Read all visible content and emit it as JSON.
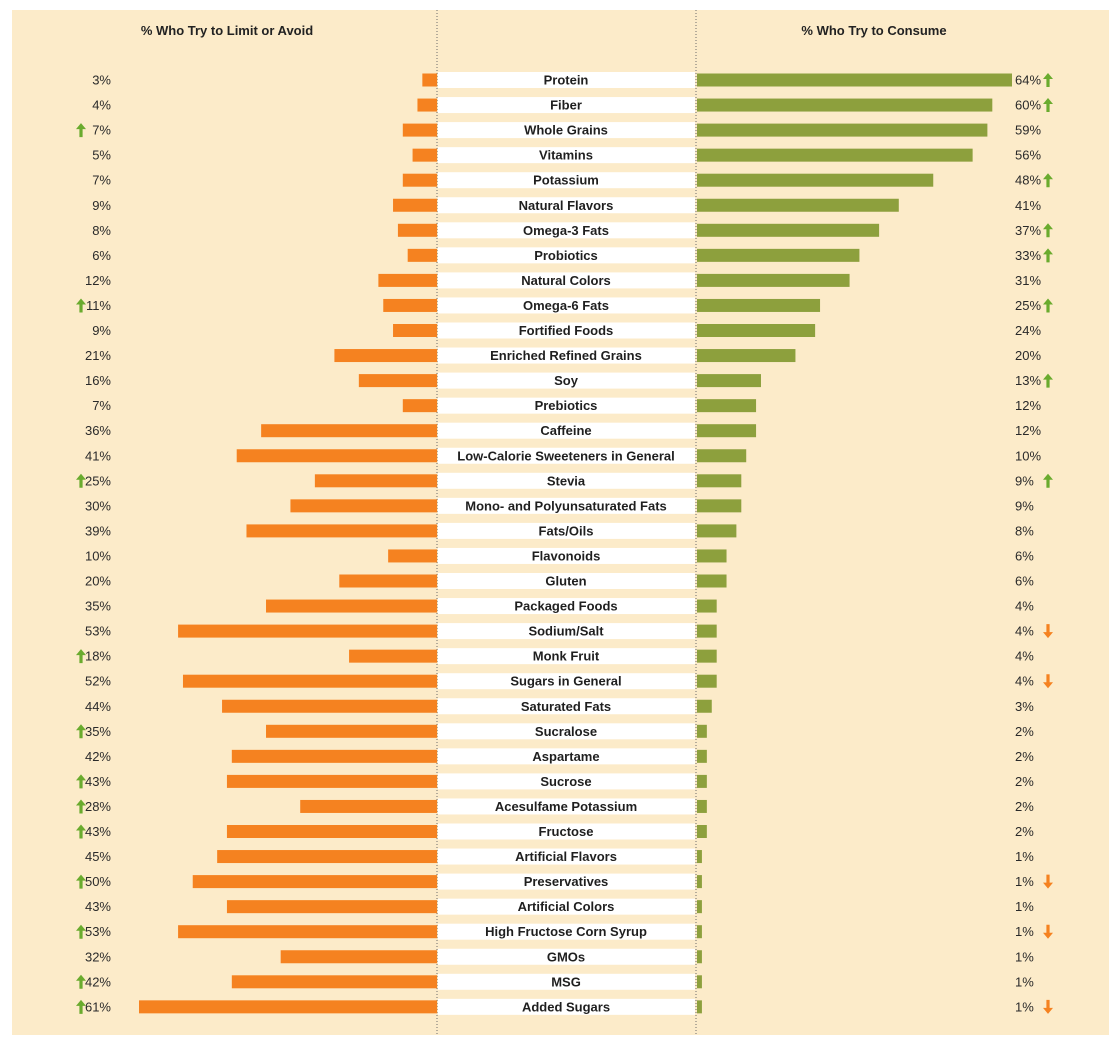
{
  "colors": {
    "background": "#fcebc9",
    "avoid_bar": "#f58220",
    "consume_bar": "#8da03d",
    "label_band": "#ffffff",
    "arrow_up": "#6aab2e",
    "arrow_down": "#f58220"
  },
  "headers": {
    "left": "% Who Try to Limit or Avoid",
    "right": "% Who Try to Consume"
  },
  "chart_data": {
    "type": "bar",
    "orientation": "horizontal-diverging",
    "categories": [
      "Protein",
      "Fiber",
      "Whole Grains",
      "Vitamins",
      "Potassium",
      "Natural Flavors",
      "Omega-3 Fats",
      "Probiotics",
      "Natural Colors",
      "Omega-6 Fats",
      "Fortified Foods",
      "Enriched Refined Grains",
      "Soy",
      "Prebiotics",
      "Caffeine",
      "Low-Calorie Sweeteners in General",
      "Stevia",
      "Mono- and Polyunsaturated Fats",
      "Fats/Oils",
      "Flavonoids",
      "Gluten",
      "Packaged Foods",
      "Sodium/Salt",
      "Monk Fruit",
      "Sugars in General",
      "Saturated Fats",
      "Sucralose",
      "Aspartame",
      "Sucrose",
      "Acesulfame Potassium",
      "Fructose",
      "Artificial Flavors",
      "Preservatives",
      "Artificial Colors",
      "High Fructose Corn Syrup",
      "GMOs",
      "MSG",
      "Added Sugars"
    ],
    "series": [
      {
        "name": "% Who Try to Limit or Avoid",
        "values": [
          3,
          4,
          7,
          5,
          7,
          9,
          8,
          6,
          12,
          11,
          9,
          21,
          16,
          7,
          36,
          41,
          25,
          30,
          39,
          10,
          20,
          35,
          53,
          18,
          52,
          44,
          35,
          42,
          43,
          28,
          43,
          45,
          50,
          43,
          53,
          32,
          42,
          61
        ],
        "trend": [
          "",
          "",
          "up",
          "",
          "",
          "",
          "",
          "",
          "",
          "up",
          "",
          "",
          "",
          "",
          "",
          "",
          "up",
          "",
          "",
          "",
          "",
          "",
          "",
          "up",
          "",
          "",
          "up",
          "",
          "up",
          "up",
          "up",
          "",
          "up",
          "",
          "up",
          "",
          "up",
          "up"
        ]
      },
      {
        "name": "% Who Try to Consume",
        "values": [
          64,
          60,
          59,
          56,
          48,
          41,
          37,
          33,
          31,
          25,
          24,
          20,
          13,
          12,
          12,
          10,
          9,
          9,
          8,
          6,
          6,
          4,
          4,
          4,
          4,
          3,
          2,
          2,
          2,
          2,
          2,
          1,
          1,
          1,
          1,
          1,
          1,
          1
        ],
        "trend": [
          "up",
          "up",
          "",
          "",
          "up",
          "",
          "up",
          "up",
          "",
          "up",
          "",
          "",
          "up",
          "",
          "",
          "",
          "up",
          "",
          "",
          "",
          "",
          "",
          "down",
          "",
          "down",
          "",
          "",
          "",
          "",
          "",
          "",
          "",
          "down",
          "",
          "down",
          "",
          "",
          "down"
        ]
      }
    ],
    "xlim": [
      0,
      64
    ],
    "unit": "%"
  }
}
